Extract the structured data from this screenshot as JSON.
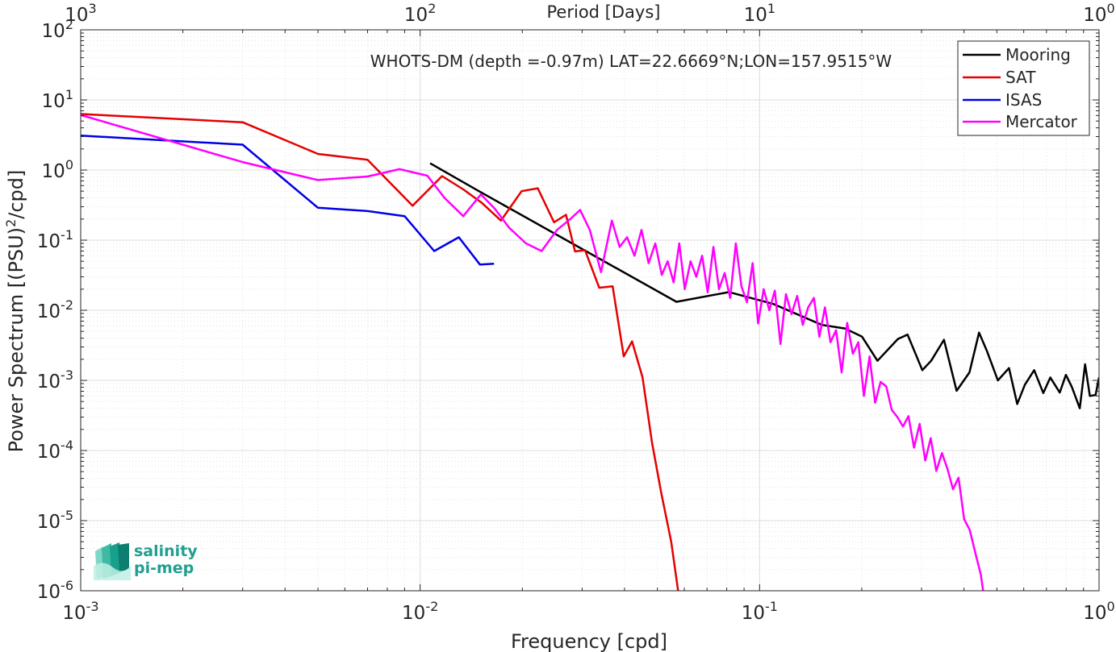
{
  "chart_data": {
    "type": "line",
    "title": "WHOTS-DM (depth =-0.97m) LAT=22.6669°N;LON=157.9515°W",
    "xlabel": "Frequency [cpd]",
    "ylabel": "Power Spectrum [(PSU)²/cpd]",
    "x2label": "Period [Days]",
    "xscale": "log",
    "yscale": "log",
    "xlim": [
      0.001,
      1
    ],
    "ylim": [
      1e-06,
      100
    ],
    "grid": true,
    "legend_position": "top-right",
    "x_ticks": [
      {
        "value": 0.001,
        "base": "10",
        "exp": "-3"
      },
      {
        "value": 0.01,
        "base": "10",
        "exp": "-2"
      },
      {
        "value": 0.1,
        "base": "10",
        "exp": "-1"
      },
      {
        "value": 1,
        "base": "10",
        "exp": "0"
      }
    ],
    "x2_ticks": [
      {
        "value": 0.001,
        "base": "10",
        "exp": "3"
      },
      {
        "value": 0.01,
        "base": "10",
        "exp": "2"
      },
      {
        "value": 0.1,
        "base": "10",
        "exp": "1"
      },
      {
        "value": 1,
        "base": "10",
        "exp": "0"
      }
    ],
    "y_ticks": [
      {
        "value": 100,
        "base": "10",
        "exp": "2"
      },
      {
        "value": 10,
        "base": "10",
        "exp": "1"
      },
      {
        "value": 1,
        "base": "10",
        "exp": "0"
      },
      {
        "value": 0.1,
        "base": "10",
        "exp": "-1"
      },
      {
        "value": 0.01,
        "base": "10",
        "exp": "-2"
      },
      {
        "value": 0.001,
        "base": "10",
        "exp": "-3"
      },
      {
        "value": 0.0001,
        "base": "10",
        "exp": "-4"
      },
      {
        "value": 1e-05,
        "base": "10",
        "exp": "-5"
      },
      {
        "value": 1e-06,
        "base": "10",
        "exp": "-6"
      }
    ],
    "series": [
      {
        "name": "Mooring",
        "color": "#000000",
        "x": [
          0.0107,
          0.0149,
          0.0569,
          0.0813,
          0.1098,
          0.1524,
          0.1786,
          0.2004,
          0.2224,
          0.2555,
          0.2728,
          0.3016,
          0.3202,
          0.3493,
          0.3805,
          0.4151,
          0.4431,
          0.4678,
          0.5034,
          0.5429,
          0.5739,
          0.6048,
          0.6439,
          0.6851,
          0.7186,
          0.7658,
          0.7986,
          0.8322,
          0.8774,
          0.9097,
          0.9394,
          0.9766,
          1.0
        ],
        "y": [
          1.25,
          0.5,
          0.0132,
          0.0182,
          0.0123,
          0.0062,
          0.0055,
          0.0042,
          0.0019,
          0.0039,
          0.0045,
          0.0014,
          0.0019,
          0.0038,
          0.00071,
          0.0013,
          0.0048,
          0.0026,
          0.001,
          0.0015,
          0.00046,
          0.00087,
          0.0014,
          0.00066,
          0.0011,
          0.00067,
          0.0012,
          0.0008,
          0.0004,
          0.0017,
          0.0006,
          0.00062,
          0.0011
        ]
      },
      {
        "name": "SAT",
        "color": "#e60000",
        "x": [
          0.001,
          0.003,
          0.005,
          0.007,
          0.0095,
          0.0116,
          0.0134,
          0.0152,
          0.0173,
          0.0199,
          0.0222,
          0.0248,
          0.0269,
          0.0286,
          0.0306,
          0.0337,
          0.0369,
          0.0398,
          0.0421,
          0.0452,
          0.0482,
          0.0513,
          0.0549,
          0.0576
        ],
        "y": [
          6.3,
          4.8,
          1.7,
          1.4,
          0.31,
          0.82,
          0.53,
          0.34,
          0.19,
          0.5,
          0.55,
          0.18,
          0.23,
          0.069,
          0.072,
          0.021,
          0.022,
          0.0022,
          0.0036,
          0.0011,
          0.00013,
          2.5e-05,
          5e-06,
          9.5e-07
        ]
      },
      {
        "name": "ISAS",
        "color": "#0000e6",
        "x": [
          0.001,
          0.003,
          0.005,
          0.007,
          0.009,
          0.011,
          0.013,
          0.015,
          0.0165
        ],
        "y": [
          3.1,
          2.3,
          0.29,
          0.26,
          0.22,
          0.07,
          0.11,
          0.045,
          0.046
        ]
      },
      {
        "name": "Mercator",
        "color": "#ff00ff",
        "x": [
          0.001,
          0.003,
          0.005,
          0.007,
          0.0087,
          0.0105,
          0.0118,
          0.0134,
          0.0151,
          0.0166,
          0.0183,
          0.0205,
          0.0228,
          0.0253,
          0.0277,
          0.0296,
          0.0316,
          0.0341,
          0.0367,
          0.0387,
          0.0407,
          0.0428,
          0.0449,
          0.0471,
          0.0493,
          0.0515,
          0.0536,
          0.0558,
          0.058,
          0.0602,
          0.0626,
          0.0651,
          0.0677,
          0.0703,
          0.0731,
          0.0759,
          0.0789,
          0.0819,
          0.0851,
          0.0884,
          0.0918,
          0.0954,
          0.099,
          0.1028,
          0.1068,
          0.1109,
          0.1152,
          0.1196,
          0.1242,
          0.129,
          0.134,
          0.1391,
          0.1445,
          0.15,
          0.1558,
          0.1618,
          0.168,
          0.1745,
          0.1812,
          0.1882,
          0.1954,
          0.2029,
          0.2108,
          0.2189,
          0.2273,
          0.2361,
          0.2451,
          0.2546,
          0.2644,
          0.2745,
          0.2851,
          0.2961,
          0.3075,
          0.3193,
          0.3316,
          0.3444,
          0.3576,
          0.3714,
          0.3857,
          0.4005,
          0.4159,
          0.4319,
          0.4486,
          0.4585
        ],
        "y": [
          6.1,
          1.3,
          0.72,
          0.81,
          1.03,
          0.83,
          0.4,
          0.22,
          0.45,
          0.28,
          0.15,
          0.09,
          0.07,
          0.14,
          0.2,
          0.27,
          0.14,
          0.035,
          0.19,
          0.08,
          0.11,
          0.06,
          0.14,
          0.047,
          0.09,
          0.032,
          0.05,
          0.025,
          0.09,
          0.02,
          0.05,
          0.03,
          0.06,
          0.018,
          0.08,
          0.02,
          0.034,
          0.015,
          0.09,
          0.022,
          0.013,
          0.047,
          0.0065,
          0.02,
          0.01,
          0.019,
          0.0033,
          0.017,
          0.0088,
          0.016,
          0.0062,
          0.011,
          0.015,
          0.0042,
          0.011,
          0.0035,
          0.0052,
          0.0013,
          0.0066,
          0.0024,
          0.0035,
          0.0006,
          0.0022,
          0.00048,
          0.00095,
          0.00082,
          0.00038,
          0.0003,
          0.00022,
          0.00031,
          0.00011,
          0.00024,
          7.2e-05,
          0.00015,
          5.1e-05,
          9.2e-05,
          5.5e-05,
          2.8e-05,
          4.1e-05,
          1.05e-05,
          7.4e-06,
          3.5e-06,
          1.7e-06,
          8e-07
        ]
      }
    ]
  },
  "logo": {
    "line1": "salinity",
    "line2": "pi-mep"
  }
}
